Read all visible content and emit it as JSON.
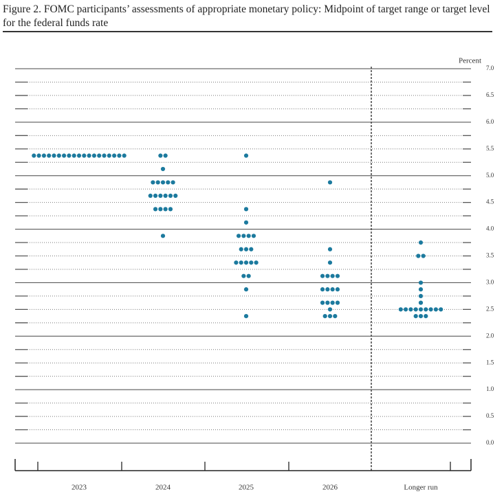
{
  "chart_data": {
    "type": "dotplot",
    "title": "Figure 2. FOMC participants’ assessments of appropriate monetary policy: Midpoint of target range or target level for the federal funds rate",
    "y_label": "Percent",
    "color": "#1c7a9e",
    "categories": [
      "2023",
      "2024",
      "2025",
      "2026",
      "Longer run"
    ],
    "dots": [
      [
        {
          "value": 5.375,
          "count": 19
        }
      ],
      [
        {
          "value": 5.375,
          "count": 2
        },
        {
          "value": 5.125,
          "count": 1
        },
        {
          "value": 4.875,
          "count": 5
        },
        {
          "value": 4.625,
          "count": 6
        },
        {
          "value": 4.375,
          "count": 4
        },
        {
          "value": 3.875,
          "count": 1
        }
      ],
      [
        {
          "value": 5.375,
          "count": 1
        },
        {
          "value": 4.375,
          "count": 1
        },
        {
          "value": 4.125,
          "count": 1
        },
        {
          "value": 3.875,
          "count": 4
        },
        {
          "value": 3.625,
          "count": 3
        },
        {
          "value": 3.375,
          "count": 5
        },
        {
          "value": 3.125,
          "count": 2
        },
        {
          "value": 2.875,
          "count": 1
        },
        {
          "value": 2.375,
          "count": 1
        }
      ],
      [
        {
          "value": 4.875,
          "count": 1
        },
        {
          "value": 3.625,
          "count": 1
        },
        {
          "value": 3.375,
          "count": 1
        },
        {
          "value": 3.125,
          "count": 4
        },
        {
          "value": 2.875,
          "count": 4
        },
        {
          "value": 2.625,
          "count": 4
        },
        {
          "value": 2.5,
          "count": 1
        },
        {
          "value": 2.375,
          "count": 3
        }
      ],
      [
        {
          "value": 3.75,
          "count": 1
        },
        {
          "value": 3.5,
          "count": 2
        },
        {
          "value": 3.0,
          "count": 1
        },
        {
          "value": 2.875,
          "count": 1
        },
        {
          "value": 2.75,
          "count": 1
        },
        {
          "value": 2.625,
          "count": 1
        },
        {
          "value": 2.5,
          "count": 9
        },
        {
          "value": 2.375,
          "count": 3
        }
      ]
    ],
    "ylim": [
      -0.25,
      7
    ],
    "yticks": [
      {
        "value": 0,
        "label": "0.0"
      },
      0.5,
      {
        "value": 1,
        "label": "1.0"
      },
      1.5,
      {
        "value": 2,
        "label": "2.0"
      },
      2.5,
      {
        "value": 3,
        "label": "3.0"
      },
      3.5,
      {
        "value": 4,
        "label": "4.0"
      },
      4.5,
      {
        "value": 5,
        "label": "5.0"
      },
      5.5,
      {
        "value": 6,
        "label": "6.0"
      },
      6.5,
      {
        "value": 7,
        "label": "7.0"
      }
    ],
    "minor_yticks": [
      0.25,
      0.75,
      1.25,
      1.75,
      2.25,
      2.75,
      3.25,
      3.75,
      4.25,
      4.75,
      5.25,
      5.75,
      6.25,
      6.75
    ]
  }
}
